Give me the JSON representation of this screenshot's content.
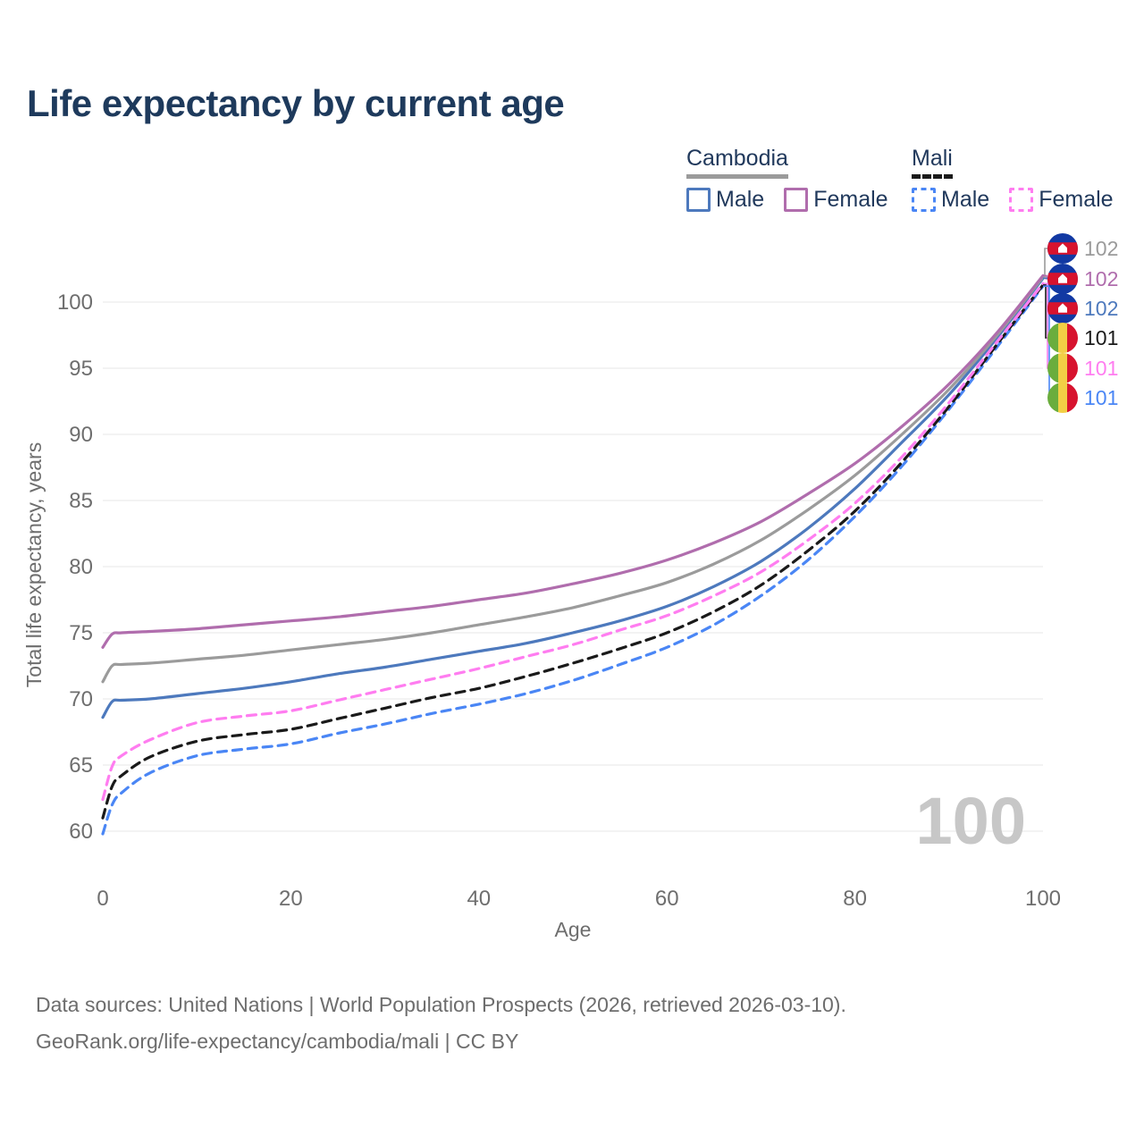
{
  "title": "Life expectancy by current age",
  "legend": {
    "groups": [
      {
        "label": "Cambodia",
        "line_style": "solid",
        "underline_color": "#9b9b9b",
        "items": [
          {
            "label": "Male",
            "color": "#4d79bd"
          },
          {
            "label": "Female",
            "color": "#b06dad"
          }
        ]
      },
      {
        "label": "Mali",
        "line_style": "dashed",
        "underline_color": "#1a1a1a",
        "items": [
          {
            "label": "Male",
            "color": "#4a86f5"
          },
          {
            "label": "Female",
            "color": "#ff7df0"
          }
        ]
      }
    ]
  },
  "chart_data": {
    "type": "line",
    "title": "Life expectancy by current age",
    "xlabel": "Age",
    "ylabel": "Total life expectancy, years",
    "xlim": [
      0,
      100
    ],
    "ylim": [
      58,
      103
    ],
    "x_ticks": [
      0,
      20,
      40,
      60,
      80,
      100
    ],
    "y_ticks": [
      60,
      65,
      70,
      75,
      80,
      85,
      90,
      95,
      100
    ],
    "grid": "horizontal",
    "legend_position": "top-right",
    "hover_age_label": "100",
    "x": [
      0,
      1,
      2,
      5,
      10,
      15,
      20,
      25,
      30,
      35,
      40,
      45,
      50,
      55,
      60,
      65,
      70,
      75,
      80,
      85,
      90,
      95,
      100
    ],
    "series": [
      {
        "name": "Cambodia Male",
        "country": "Cambodia",
        "sex": "Male",
        "color": "#4d79bd",
        "dash": "solid",
        "values": [
          68.6,
          69.8,
          69.9,
          70.0,
          70.4,
          70.8,
          71.3,
          71.9,
          72.4,
          73.0,
          73.6,
          74.2,
          75.0,
          75.9,
          77.0,
          78.5,
          80.4,
          82.9,
          85.9,
          89.4,
          93.0,
          97.2,
          101.8
        ]
      },
      {
        "name": "Cambodia Total",
        "country": "Cambodia",
        "sex": "Both",
        "color": "#9b9b9b",
        "dash": "solid",
        "values": [
          71.3,
          72.5,
          72.6,
          72.7,
          73.0,
          73.3,
          73.7,
          74.1,
          74.5,
          75.0,
          75.6,
          76.2,
          76.9,
          77.8,
          78.8,
          80.2,
          82.0,
          84.3,
          86.9,
          90.0,
          93.4,
          97.4,
          101.9
        ]
      },
      {
        "name": "Cambodia Female",
        "country": "Cambodia",
        "sex": "Female",
        "color": "#b06dad",
        "dash": "solid",
        "values": [
          73.9,
          74.9,
          75.0,
          75.1,
          75.3,
          75.6,
          75.9,
          76.2,
          76.6,
          77.0,
          77.5,
          78.0,
          78.7,
          79.5,
          80.5,
          81.8,
          83.4,
          85.5,
          87.8,
          90.6,
          93.8,
          97.6,
          102.0
        ]
      },
      {
        "name": "Mali Male",
        "country": "Mali",
        "sex": "Male",
        "color": "#4a86f5",
        "dash": "dashed",
        "values": [
          59.8,
          62.0,
          62.9,
          64.4,
          65.7,
          66.2,
          66.6,
          67.4,
          68.1,
          68.9,
          69.6,
          70.4,
          71.4,
          72.6,
          73.9,
          75.6,
          77.8,
          80.5,
          83.8,
          87.6,
          91.9,
          96.5,
          101.2
        ]
      },
      {
        "name": "Mali Total",
        "country": "Mali",
        "sex": "Both",
        "color": "#1a1a1a",
        "dash": "dashed",
        "values": [
          61.0,
          63.4,
          64.2,
          65.6,
          66.8,
          67.3,
          67.7,
          68.5,
          69.3,
          70.1,
          70.8,
          71.7,
          72.7,
          73.8,
          75.0,
          76.6,
          78.6,
          81.2,
          84.2,
          87.9,
          92.1,
          96.7,
          101.3
        ]
      },
      {
        "name": "Mali Female",
        "country": "Mali",
        "sex": "Female",
        "color": "#ff7df0",
        "dash": "dashed",
        "values": [
          62.4,
          64.9,
          65.7,
          66.9,
          68.2,
          68.7,
          69.1,
          69.9,
          70.7,
          71.5,
          72.3,
          73.2,
          74.1,
          75.2,
          76.3,
          77.8,
          79.6,
          82.0,
          84.8,
          88.3,
          92.4,
          96.9,
          101.4
        ]
      }
    ]
  },
  "badges": [
    {
      "series": "Cambodia Total",
      "flag": "cambodia",
      "value": "102",
      "color": "#9b9b9b"
    },
    {
      "series": "Cambodia Female",
      "flag": "cambodia",
      "value": "102",
      "color": "#b06dad"
    },
    {
      "series": "Cambodia Male",
      "flag": "cambodia",
      "value": "102",
      "color": "#4d79bd"
    },
    {
      "series": "Mali Total",
      "flag": "mali",
      "value": "101",
      "color": "#1a1a1a"
    },
    {
      "series": "Mali Female",
      "flag": "mali",
      "value": "101",
      "color": "#ff7df0"
    },
    {
      "series": "Mali Male",
      "flag": "mali",
      "value": "101",
      "color": "#4a86f5"
    }
  ],
  "footer": {
    "line1": "Data sources: United Nations | World Population Prospects (2026, retrieved 2026-03-10).",
    "line2": "GeoRank.org/life-expectancy/cambodia/mali | CC BY"
  }
}
